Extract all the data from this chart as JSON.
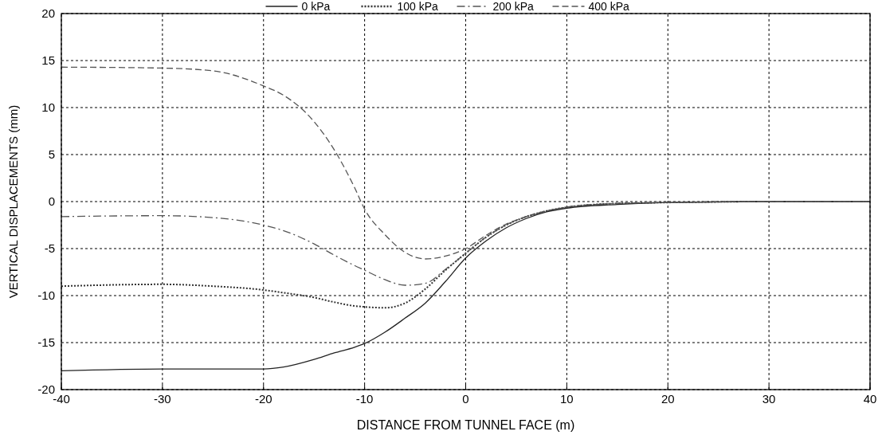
{
  "chart_data": {
    "type": "line",
    "xlabel": "DISTANCE FROM TUNNEL FACE (m)",
    "ylabel": "VERTICAL DISPLACEMENTS (mm)",
    "xlim": [
      -40,
      40
    ],
    "xticks": [
      -40,
      -30,
      -20,
      -10,
      0,
      10,
      20,
      30,
      40
    ],
    "ylim": [
      -20,
      20
    ],
    "yticks": [
      -20,
      -15,
      -10,
      -5,
      0,
      5,
      10,
      15,
      20
    ],
    "grid": true,
    "legend": "top",
    "x": [
      -40,
      -30,
      -25,
      -20,
      -18,
      -15,
      -13,
      -11,
      -10,
      -8,
      -6,
      -4,
      -2,
      0,
      2,
      4,
      6,
      8,
      10,
      15,
      20,
      30,
      40
    ],
    "series": [
      {
        "name": "0 kPa",
        "color": "#222222",
        "line_style": "solid",
        "values": [
          -18.0,
          -17.8,
          -17.8,
          -17.8,
          -17.6,
          -16.8,
          -16.1,
          -15.5,
          -15.1,
          -13.9,
          -12.4,
          -10.8,
          -8.5,
          -6.0,
          -4.2,
          -2.8,
          -1.8,
          -1.1,
          -0.7,
          -0.3,
          -0.1,
          0,
          0
        ]
      },
      {
        "name": "100 kPa",
        "color": "#333333",
        "line_style": "dotted",
        "values": [
          -9.0,
          -8.8,
          -9.0,
          -9.4,
          -9.7,
          -10.2,
          -10.7,
          -11.1,
          -11.2,
          -11.3,
          -10.8,
          -9.3,
          -7.3,
          -5.5,
          -3.8,
          -2.5,
          -1.6,
          -1.0,
          -0.6,
          -0.2,
          -0.1,
          0,
          0
        ]
      },
      {
        "name": "200 kPa",
        "color": "#555555",
        "line_style": "dashdot",
        "values": [
          -1.6,
          -1.5,
          -1.7,
          -2.5,
          -3.1,
          -4.5,
          -5.7,
          -6.8,
          -7.3,
          -8.3,
          -8.9,
          -8.7,
          -7.2,
          -5.5,
          -3.8,
          -2.5,
          -1.6,
          -1.0,
          -0.6,
          -0.2,
          -0.1,
          0,
          0
        ]
      },
      {
        "name": "400 kPa",
        "color": "#555555",
        "line_style": "dashed",
        "values": [
          14.3,
          14.2,
          13.9,
          12.3,
          11.3,
          8.5,
          5.5,
          1.5,
          -0.8,
          -3.5,
          -5.4,
          -6.1,
          -5.8,
          -5.0,
          -3.6,
          -2.4,
          -1.6,
          -1.0,
          -0.6,
          -0.2,
          -0.1,
          0,
          0
        ]
      }
    ]
  }
}
